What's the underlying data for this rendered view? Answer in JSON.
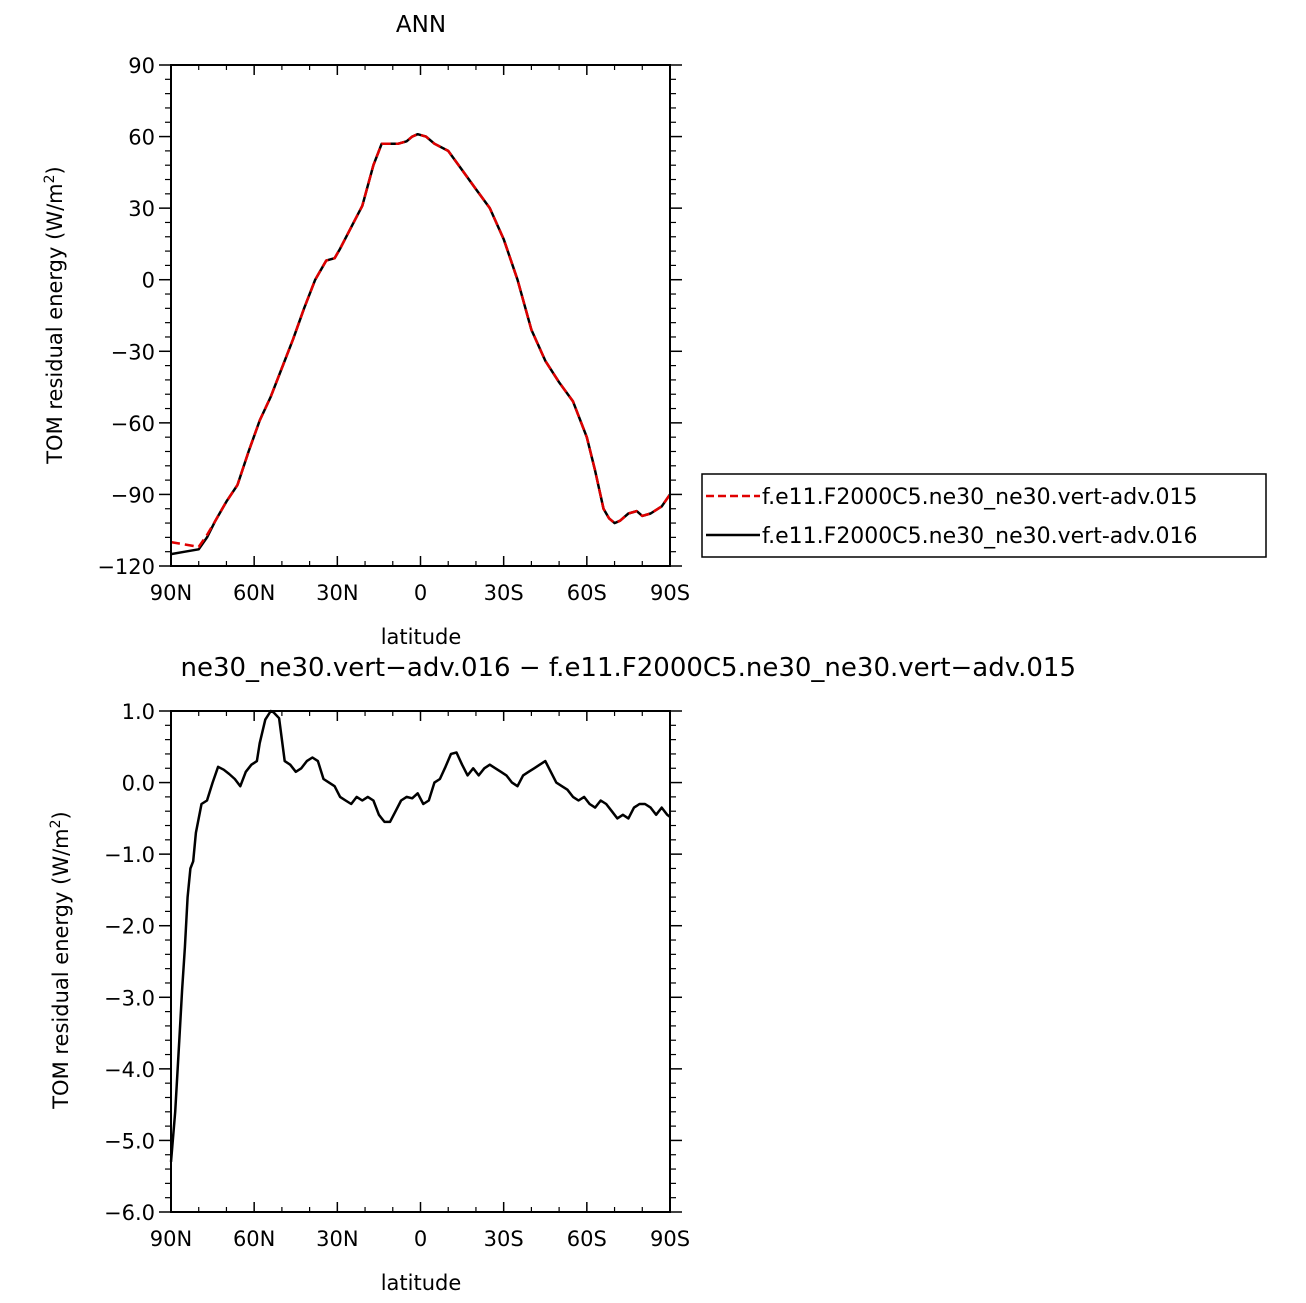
{
  "chart_data": [
    {
      "type": "line",
      "title": "ANN",
      "xlabel": "latitude",
      "ylabel": "TOM residual energy",
      "ylabel_unit": "(W/m",
      "ylabel_unit_sup": "2",
      "ylabel_unit_close": ")",
      "xlim": [
        90,
        -90
      ],
      "ylim": [
        -120,
        90
      ],
      "x_ticks": [
        90,
        60,
        30,
        0,
        -30,
        -60,
        -90
      ],
      "x_tick_labels": [
        "90N",
        "60N",
        "30N",
        "0",
        "30S",
        "60S",
        "90S"
      ],
      "y_ticks": [
        -120,
        -90,
        -60,
        -30,
        0,
        30,
        60,
        90
      ],
      "y_tick_labels": [
        "−120",
        "−90",
        "−60",
        "−30",
        "0",
        "30",
        "60",
        "90"
      ],
      "legend_position": "right",
      "series": [
        {
          "name": "f.e11.F2000C5.ne30_ne30.vert-adv.015",
          "color": "#e00000",
          "dash": "dashed",
          "x": [
            90,
            85,
            80,
            77,
            74,
            70,
            66,
            62,
            58,
            54,
            50,
            46,
            42,
            38,
            34,
            31,
            29,
            25,
            21,
            17,
            14,
            11,
            8,
            5,
            3,
            1,
            -2,
            -5,
            -10,
            -15,
            -20,
            -25,
            -30,
            -35,
            -40,
            -45,
            -50,
            -55,
            -60,
            -63,
            -66,
            -68,
            -70,
            -72,
            -75,
            -78,
            -80,
            -83,
            -87,
            -90
          ],
          "y": [
            -110,
            -111,
            -112,
            -107,
            -101,
            -93,
            -86,
            -72,
            -59,
            -49,
            -37,
            -25,
            -12,
            0,
            8,
            9,
            13,
            22,
            31,
            48,
            57,
            57,
            57,
            58,
            60,
            61,
            60,
            57,
            54,
            46,
            38,
            30,
            17,
            0,
            -21,
            -34,
            -43,
            -51,
            -66,
            -80,
            -96,
            -100,
            -102,
            -101,
            -98,
            -97,
            -99,
            -98,
            -95,
            -90
          ]
        },
        {
          "name": "f.e11.F2000C5.ne30_ne30.vert-adv.016",
          "color": "#000000",
          "dash": "solid",
          "x": [
            90,
            85,
            80,
            77,
            74,
            70,
            66,
            62,
            58,
            54,
            50,
            46,
            42,
            38,
            34,
            31,
            29,
            25,
            21,
            17,
            14,
            11,
            8,
            5,
            3,
            1,
            -2,
            -5,
            -10,
            -15,
            -20,
            -25,
            -30,
            -35,
            -40,
            -45,
            -50,
            -55,
            -60,
            -63,
            -66,
            -68,
            -70,
            -72,
            -75,
            -78,
            -80,
            -83,
            -87,
            -90
          ],
          "y": [
            -115,
            -114,
            -113,
            -108,
            -101,
            -93,
            -86,
            -72,
            -59,
            -49,
            -37,
            -25,
            -12,
            0,
            8,
            9,
            13,
            22,
            31,
            48,
            57,
            57,
            57,
            58,
            60,
            61,
            60,
            57,
            54,
            46,
            38,
            30,
            17,
            0,
            -21,
            -34,
            -43,
            -51,
            -66,
            -80,
            -96,
            -100,
            -102,
            -101,
            -98,
            -97,
            -99,
            -98,
            -95,
            -90
          ]
        }
      ]
    },
    {
      "type": "line",
      "title": "ne30_ne30.vert−adv.016 − f.e11.F2000C5.ne30_ne30.vert−adv.015",
      "xlabel": "latitude",
      "ylabel": "TOM residual energy",
      "ylabel_unit": "(W/m",
      "ylabel_unit_sup": "2",
      "ylabel_unit_close": ")",
      "xlim": [
        90,
        -90
      ],
      "ylim": [
        -6,
        1
      ],
      "x_ticks": [
        90,
        60,
        30,
        0,
        -30,
        -60,
        -90
      ],
      "x_tick_labels": [
        "90N",
        "60N",
        "30N",
        "0",
        "30S",
        "60S",
        "90S"
      ],
      "y_ticks": [
        -6,
        -5,
        -4,
        -3,
        -2,
        -1,
        0,
        1
      ],
      "y_tick_labels": [
        "−6.0",
        "−5.0",
        "−4.0",
        "−3.0",
        "−2.0",
        "−1.0",
        "0.0",
        "1.0"
      ],
      "series": [
        {
          "color": "#000000",
          "dash": "solid",
          "x": [
            90,
            88.5,
            87,
            86,
            85,
            84,
            83,
            82,
            81,
            79,
            77,
            75,
            73,
            71,
            69,
            67,
            65,
            63,
            61,
            59,
            58,
            56,
            54,
            53,
            51,
            49,
            47,
            45,
            43,
            41,
            39,
            37,
            35,
            33,
            31,
            29,
            27,
            25,
            23,
            21,
            19,
            17,
            15,
            13,
            11,
            9,
            7,
            5,
            3,
            1,
            -1,
            -3,
            -5,
            -7,
            -9,
            -11,
            -13,
            -15,
            -17,
            -19,
            -21,
            -23,
            -25,
            -27,
            -29,
            -31,
            -33,
            -35,
            -37,
            -39,
            -41,
            -43,
            -45,
            -47,
            -49,
            -51,
            -53,
            -55,
            -57,
            -59,
            -61,
            -63,
            -65,
            -67,
            -69,
            -71,
            -73,
            -75,
            -77,
            -79,
            -81,
            -83,
            -85,
            -87,
            -89,
            -90
          ],
          "y": [
            -5.3,
            -4.6,
            -3.6,
            -2.9,
            -2.3,
            -1.6,
            -1.2,
            -1.1,
            -0.7,
            -0.3,
            -0.25,
            0.0,
            0.22,
            0.18,
            0.12,
            0.05,
            -0.05,
            0.15,
            0.25,
            0.3,
            0.55,
            0.88,
            1.0,
            0.98,
            0.9,
            0.3,
            0.25,
            0.15,
            0.2,
            0.3,
            0.35,
            0.3,
            0.05,
            0.0,
            -0.05,
            -0.2,
            -0.25,
            -0.3,
            -0.2,
            -0.25,
            -0.2,
            -0.25,
            -0.45,
            -0.55,
            -0.55,
            -0.4,
            -0.25,
            -0.2,
            -0.22,
            -0.15,
            -0.3,
            -0.25,
            0.0,
            0.05,
            0.22,
            0.4,
            0.42,
            0.25,
            0.1,
            0.2,
            0.1,
            0.2,
            0.25,
            0.2,
            0.15,
            0.1,
            0.0,
            -0.05,
            0.1,
            0.15,
            0.2,
            0.25,
            0.3,
            0.15,
            0.0,
            -0.05,
            -0.1,
            -0.2,
            -0.25,
            -0.2,
            -0.3,
            -0.35,
            -0.25,
            -0.3,
            -0.4,
            -0.5,
            -0.45,
            -0.5,
            -0.35,
            -0.3,
            -0.3,
            -0.35,
            -0.45,
            -0.35,
            -0.45,
            -0.48
          ]
        }
      ]
    }
  ]
}
